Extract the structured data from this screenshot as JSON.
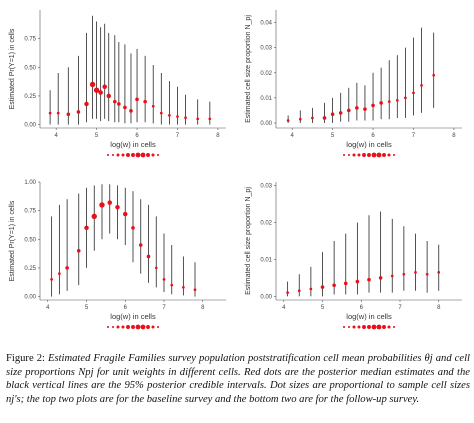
{
  "figure": {
    "caption_label": "Figure 2:",
    "caption_text": "Estimated Fragile Families survey population poststratification cell mean probabilities θj and cell size proportions Npj for unit weights in different cells. Red dots are the posterior median estimates and the black vertical lines are the 95% posterior credible intervals. Dot sizes are proportional to sample cell sizes nj's; the top two plots are for the baseline survey and the bottom two are for the follow-up survey."
  },
  "colors": {
    "point": "#e8101a",
    "interval": "#000000",
    "axis": "#555555"
  },
  "chart_data": [
    {
      "id": "baseline-theta",
      "type": "scatter",
      "survey": "baseline",
      "xlabel": "log(w) in cells",
      "ylabel": "Estimated Pr(Y=1) in cells",
      "xlim": [
        3.6,
        8.2
      ],
      "ylim": [
        -0.03,
        1.0
      ],
      "xticks": [
        "4",
        "5",
        "6",
        "7",
        "8"
      ],
      "yticks": [
        "0.00",
        "0.25",
        "0.50",
        "0.75"
      ],
      "x": [
        3.85,
        4.05,
        4.3,
        4.55,
        4.75,
        4.9,
        5.0,
        5.1,
        5.2,
        5.3,
        5.45,
        5.55,
        5.7,
        5.85,
        6.0,
        6.2,
        6.4,
        6.6,
        6.8,
        7.0,
        7.2,
        7.5,
        7.8
      ],
      "median": [
        0.1,
        0.1,
        0.09,
        0.11,
        0.18,
        0.35,
        0.3,
        0.28,
        0.33,
        0.25,
        0.2,
        0.18,
        0.15,
        0.12,
        0.22,
        0.2,
        0.16,
        0.1,
        0.08,
        0.07,
        0.06,
        0.05,
        0.05
      ],
      "lower": [
        0.0,
        0.0,
        0.0,
        0.0,
        0.02,
        0.05,
        0.05,
        0.03,
        0.05,
        0.03,
        0.02,
        0.02,
        0.01,
        0.01,
        0.02,
        0.02,
        0.01,
        0.0,
        0.0,
        0.0,
        0.0,
        0.0,
        0.0
      ],
      "upper": [
        0.3,
        0.45,
        0.5,
        0.6,
        0.8,
        0.95,
        0.9,
        0.85,
        0.88,
        0.8,
        0.78,
        0.72,
        0.7,
        0.62,
        0.66,
        0.6,
        0.52,
        0.45,
        0.38,
        0.33,
        0.26,
        0.22,
        0.2
      ],
      "size": [
        1,
        1,
        2,
        2,
        3,
        4,
        4,
        3,
        3,
        3,
        2,
        2,
        2,
        2,
        2,
        2,
        1,
        1,
        1,
        1,
        1,
        1,
        1
      ]
    },
    {
      "id": "baseline-npj",
      "type": "scatter",
      "survey": "baseline",
      "xlabel": "log(w) in cells",
      "ylabel": "Estimated cell size proportion N_pj",
      "xlim": [
        3.6,
        8.2
      ],
      "ylim": [
        -0.002,
        0.045
      ],
      "xticks": [
        "4",
        "5",
        "6",
        "7",
        "8"
      ],
      "yticks": [
        "0.00",
        "0.01",
        "0.02",
        "0.03",
        "0.04"
      ],
      "x": [
        3.9,
        4.2,
        4.5,
        4.8,
        5.0,
        5.2,
        5.4,
        5.6,
        5.8,
        6.0,
        6.2,
        6.4,
        6.6,
        6.8,
        7.0,
        7.2,
        7.5
      ],
      "median": [
        0.001,
        0.0015,
        0.002,
        0.002,
        0.0035,
        0.004,
        0.005,
        0.006,
        0.0055,
        0.007,
        0.008,
        0.0085,
        0.009,
        0.01,
        0.012,
        0.015,
        0.019
      ],
      "lower": [
        0.0,
        0.0,
        0.0,
        0.0,
        0.0,
        0.0005,
        0.0005,
        0.001,
        0.001,
        0.001,
        0.0015,
        0.0015,
        0.002,
        0.002,
        0.003,
        0.004,
        0.006
      ],
      "upper": [
        0.003,
        0.005,
        0.006,
        0.008,
        0.01,
        0.012,
        0.014,
        0.016,
        0.015,
        0.02,
        0.022,
        0.025,
        0.027,
        0.03,
        0.034,
        0.038,
        0.036
      ],
      "size": [
        1,
        1,
        1,
        2,
        2,
        2,
        2,
        2,
        2,
        2,
        2,
        1,
        1,
        1,
        1,
        1,
        1
      ]
    },
    {
      "id": "followup-theta",
      "type": "scatter",
      "survey": "follow-up",
      "xlabel": "log(w) in cells",
      "ylabel": "Estimated Pr(Y=1) in cells",
      "xlim": [
        3.8,
        8.6
      ],
      "ylim": [
        -0.03,
        1.0
      ],
      "xticks": [
        "4",
        "5",
        "6",
        "7",
        "8"
      ],
      "yticks": [
        "0.00",
        "0.25",
        "0.50",
        "0.75",
        "1.00"
      ],
      "x": [
        4.1,
        4.3,
        4.5,
        4.8,
        5.0,
        5.2,
        5.4,
        5.6,
        5.8,
        6.0,
        6.2,
        6.4,
        6.6,
        6.8,
        7.0,
        7.2,
        7.5,
        7.8
      ],
      "median": [
        0.15,
        0.2,
        0.25,
        0.4,
        0.6,
        0.7,
        0.8,
        0.82,
        0.78,
        0.72,
        0.6,
        0.45,
        0.35,
        0.25,
        0.15,
        0.1,
        0.08,
        0.06
      ],
      "lower": [
        0.0,
        0.02,
        0.05,
        0.1,
        0.25,
        0.4,
        0.5,
        0.55,
        0.5,
        0.45,
        0.3,
        0.2,
        0.12,
        0.08,
        0.04,
        0.02,
        0.01,
        0.0
      ],
      "upper": [
        0.7,
        0.8,
        0.85,
        0.9,
        0.95,
        0.97,
        0.98,
        0.98,
        0.97,
        0.95,
        0.92,
        0.85,
        0.8,
        0.7,
        0.55,
        0.45,
        0.35,
        0.3
      ],
      "size": [
        1,
        1,
        2,
        2,
        3,
        4,
        4,
        3,
        3,
        3,
        2,
        2,
        2,
        1,
        1,
        1,
        1,
        1
      ]
    },
    {
      "id": "followup-npj",
      "type": "scatter",
      "survey": "follow-up",
      "xlabel": "log(w) in cells",
      "ylabel": "Estimated cell size proportion N_pj",
      "xlim": [
        3.8,
        8.6
      ],
      "ylim": [
        -0.001,
        0.031
      ],
      "xticks": [
        "4",
        "5",
        "6",
        "7",
        "8"
      ],
      "yticks": [
        "0.00",
        "0.01",
        "0.02",
        "0.03"
      ],
      "x": [
        4.1,
        4.4,
        4.7,
        5.0,
        5.3,
        5.6,
        5.9,
        6.2,
        6.5,
        6.8,
        7.1,
        7.4,
        7.7,
        8.0
      ],
      "median": [
        0.001,
        0.0015,
        0.002,
        0.0025,
        0.003,
        0.0035,
        0.004,
        0.0045,
        0.005,
        0.0055,
        0.006,
        0.0065,
        0.006,
        0.0065
      ],
      "lower": [
        0.0,
        0.0,
        0.0,
        0.0,
        0.0005,
        0.0005,
        0.0005,
        0.001,
        0.001,
        0.001,
        0.0015,
        0.0015,
        0.001,
        0.0015
      ],
      "upper": [
        0.004,
        0.006,
        0.008,
        0.012,
        0.015,
        0.017,
        0.02,
        0.022,
        0.023,
        0.021,
        0.019,
        0.017,
        0.015,
        0.014
      ],
      "size": [
        1,
        1,
        1,
        2,
        2,
        2,
        2,
        2,
        2,
        1,
        1,
        1,
        1,
        1
      ]
    }
  ]
}
